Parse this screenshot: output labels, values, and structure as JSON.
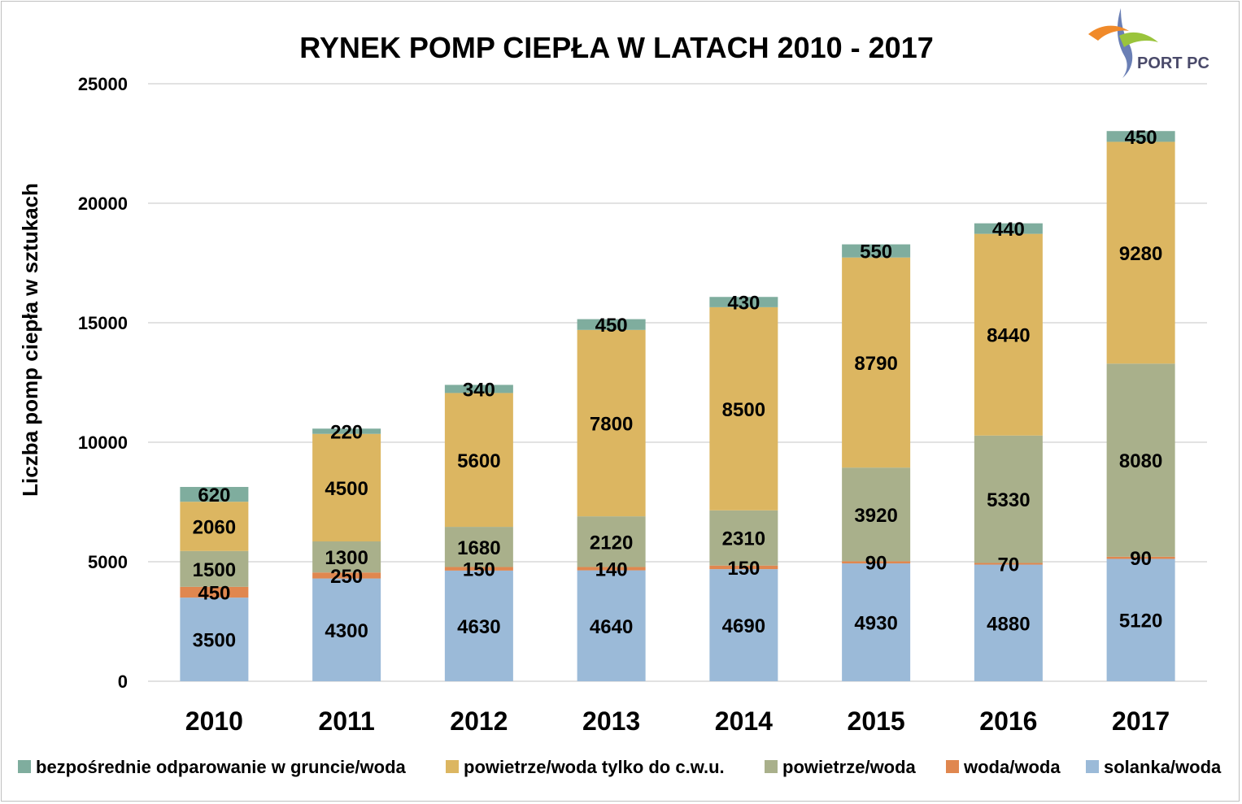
{
  "logo": {
    "text": "PORT PC"
  },
  "chart_data": {
    "type": "bar",
    "stacked": true,
    "title": "RYNEK POMP CIEPŁA W LATACH 2010 - 2017",
    "ylabel": "Liczba  pomp ciepła  w sztukach",
    "xlabel": "",
    "ylim": [
      0,
      25000
    ],
    "yticks": [
      0,
      5000,
      10000,
      15000,
      20000,
      25000
    ],
    "grid": true,
    "legend_position": "bottom",
    "categories": [
      "2010",
      "2011",
      "2012",
      "2013",
      "2014",
      "2015",
      "2016",
      "2017"
    ],
    "series": [
      {
        "name": "solanka/woda",
        "color": "#9bbad8",
        "values": [
          3500,
          4300,
          4630,
          4640,
          4690,
          4930,
          4880,
          5120
        ]
      },
      {
        "name": "woda/woda",
        "color": "#e0874f",
        "values": [
          450,
          250,
          150,
          140,
          150,
          90,
          70,
          90
        ]
      },
      {
        "name": "powietrze/woda",
        "color": "#a9b08b",
        "values": [
          1500,
          1300,
          1680,
          2120,
          2310,
          3920,
          5330,
          8080
        ]
      },
      {
        "name": "powietrze/woda tylko do c.w.u.",
        "color": "#dcb661",
        "values": [
          2060,
          4500,
          5600,
          7800,
          8500,
          8790,
          8440,
          9280
        ]
      },
      {
        "name": "bezpośrednie odparowanie w gruncie/woda",
        "color": "#7fad9e",
        "values": [
          620,
          220,
          340,
          450,
          430,
          550,
          440,
          450
        ]
      }
    ],
    "legend_order": [
      "bezpośrednie odparowanie w gruncie/woda",
      "powietrze/woda tylko do c.w.u.",
      "powietrze/woda",
      "woda/woda",
      "solanka/woda"
    ]
  }
}
